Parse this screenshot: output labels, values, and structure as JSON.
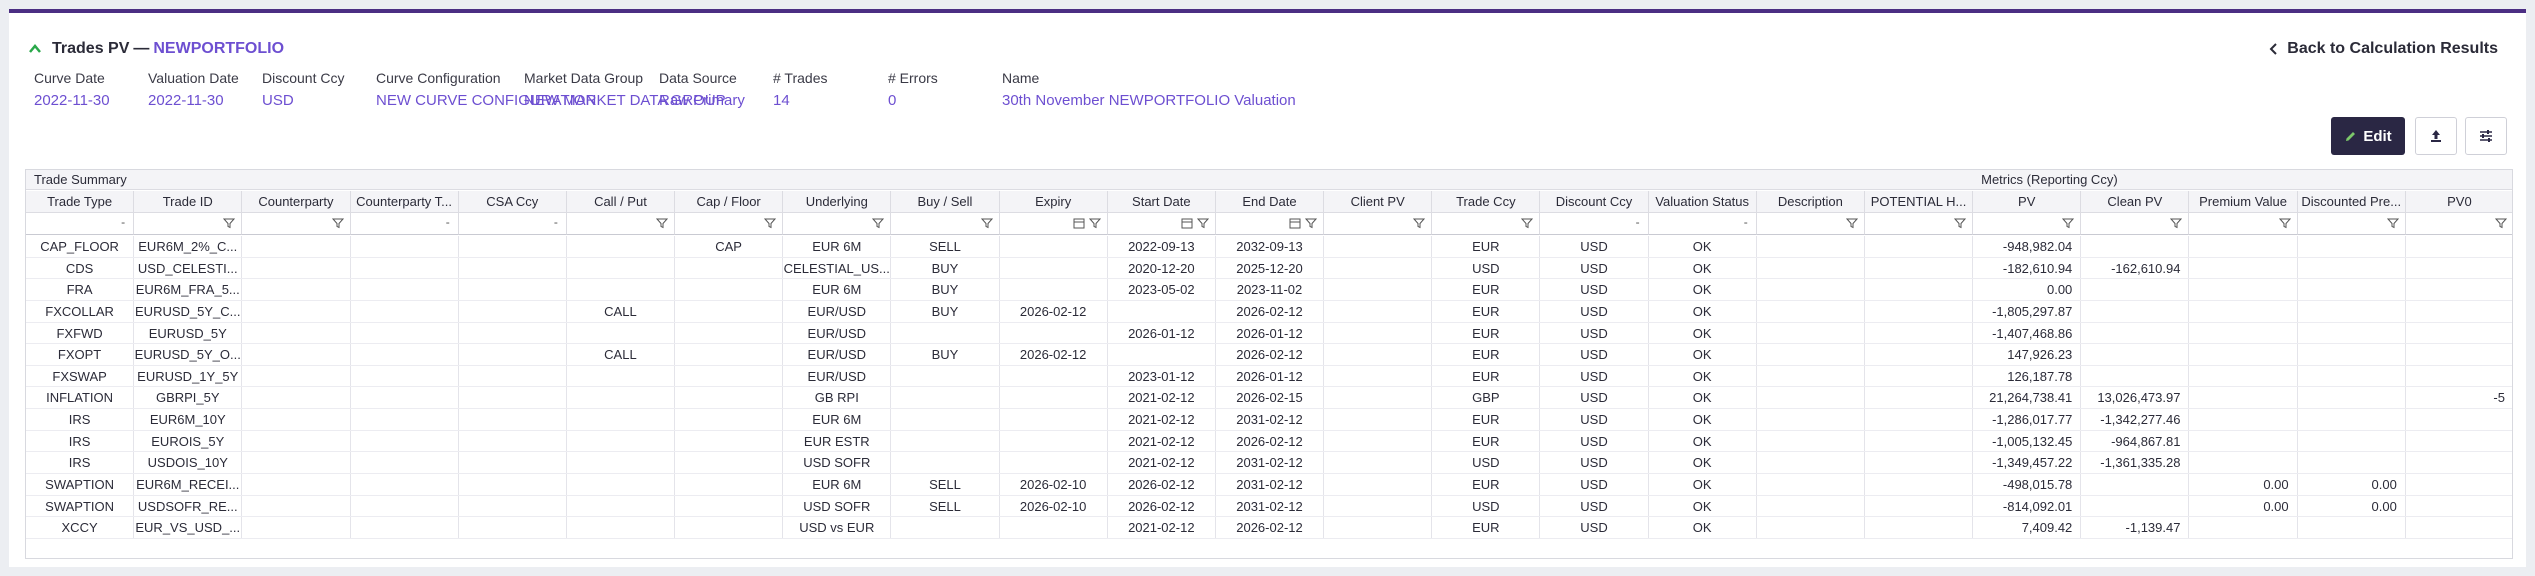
{
  "header": {
    "title": "Trades PV",
    "dash": "—",
    "portfolio": "NEWPORTFOLIO",
    "back_label": "Back to Calculation Results"
  },
  "meta": [
    {
      "label": "Curve Date",
      "value": "2022-11-30"
    },
    {
      "label": "Valuation Date",
      "value": "2022-11-30"
    },
    {
      "label": "Discount Ccy",
      "value": "USD"
    },
    {
      "label": "Curve Configuration",
      "value": "NEW CURVE CONFIGURATION"
    },
    {
      "label": "Market Data Group",
      "value": "NEW MARKET DATA GROUP"
    },
    {
      "label": "Data Source",
      "value": "Raw Primary"
    },
    {
      "label": "# Trades",
      "value": "14"
    },
    {
      "label": "# Errors",
      "value": "0"
    },
    {
      "label": "Name",
      "value": "30th November NEWPORTFOLIO Valuation"
    }
  ],
  "toolbar": {
    "edit_label": "Edit",
    "accent": "#2a2744"
  },
  "grid": {
    "group_trade_summary": "Trade Summary",
    "group_metrics": "Metrics (Reporting Ccy)",
    "columns": [
      "Trade Type",
      "Trade ID",
      "Counterparty",
      "Counterparty T...",
      "CSA Ccy",
      "Call / Put",
      "Cap / Floor",
      "Underlying",
      "Buy / Sell",
      "Expiry",
      "Start Date",
      "End Date",
      "Client PV",
      "Trade Ccy",
      "Discount Ccy",
      "Valuation Status",
      "Description",
      "POTENTIAL H...",
      "PV",
      "Clean PV",
      "Premium Value",
      "Discounted Pre...",
      "PV0"
    ],
    "rows": [
      [
        "CAP_FLOOR",
        "EUR6M_2%_C...",
        "",
        "",
        "",
        "",
        "CAP",
        "EUR 6M",
        "SELL",
        "",
        "2022-09-13",
        "2032-09-13",
        "",
        "EUR",
        "USD",
        "OK",
        "",
        "",
        "-948,982.04",
        "",
        "",
        "",
        ""
      ],
      [
        "CDS",
        "USD_CELESTI...",
        "",
        "",
        "",
        "",
        "",
        "CELESTIAL_US...",
        "BUY",
        "",
        "2020-12-20",
        "2025-12-20",
        "",
        "USD",
        "USD",
        "OK",
        "",
        "",
        "-182,610.94",
        "-162,610.94",
        "",
        "",
        ""
      ],
      [
        "FRA",
        "EUR6M_FRA_5...",
        "",
        "",
        "",
        "",
        "",
        "EUR 6M",
        "BUY",
        "",
        "2023-05-02",
        "2023-11-02",
        "",
        "EUR",
        "USD",
        "OK",
        "",
        "",
        "0.00",
        "",
        "",
        "",
        ""
      ],
      [
        "FXCOLLAR",
        "EURUSD_5Y_C...",
        "",
        "",
        "",
        "CALL",
        "",
        "EUR/USD",
        "BUY",
        "2026-02-12",
        "",
        "2026-02-12",
        "",
        "EUR",
        "USD",
        "OK",
        "",
        "",
        "-1,805,297.87",
        "",
        "",
        "",
        ""
      ],
      [
        "FXFWD",
        "EURUSD_5Y",
        "",
        "",
        "",
        "",
        "",
        "EUR/USD",
        "",
        "",
        "2026-01-12",
        "2026-01-12",
        "",
        "EUR",
        "USD",
        "OK",
        "",
        "",
        "-1,407,468.86",
        "",
        "",
        "",
        ""
      ],
      [
        "FXOPT",
        "EURUSD_5Y_O...",
        "",
        "",
        "",
        "CALL",
        "",
        "EUR/USD",
        "BUY",
        "2026-02-12",
        "",
        "2026-02-12",
        "",
        "EUR",
        "USD",
        "OK",
        "",
        "",
        "147,926.23",
        "",
        "",
        "",
        ""
      ],
      [
        "FXSWAP",
        "EURUSD_1Y_5Y",
        "",
        "",
        "",
        "",
        "",
        "EUR/USD",
        "",
        "",
        "2023-01-12",
        "2026-01-12",
        "",
        "EUR",
        "USD",
        "OK",
        "",
        "",
        "126,187.78",
        "",
        "",
        "",
        ""
      ],
      [
        "INFLATION",
        "GBRPI_5Y",
        "",
        "",
        "",
        "",
        "",
        "GB RPI",
        "",
        "",
        "2021-02-12",
        "2026-02-15",
        "",
        "GBP",
        "USD",
        "OK",
        "",
        "",
        "21,264,738.41",
        "13,026,473.97",
        "",
        "",
        "-5"
      ],
      [
        "IRS",
        "EUR6M_10Y",
        "",
        "",
        "",
        "",
        "",
        "EUR 6M",
        "",
        "",
        "2021-02-12",
        "2031-02-12",
        "",
        "EUR",
        "USD",
        "OK",
        "",
        "",
        "-1,286,017.77",
        "-1,342,277.46",
        "",
        "",
        ""
      ],
      [
        "IRS",
        "EUROIS_5Y",
        "",
        "",
        "",
        "",
        "",
        "EUR ESTR",
        "",
        "",
        "2021-02-12",
        "2026-02-12",
        "",
        "EUR",
        "USD",
        "OK",
        "",
        "",
        "-1,005,132.45",
        "-964,867.81",
        "",
        "",
        ""
      ],
      [
        "IRS",
        "USDOIS_10Y",
        "",
        "",
        "",
        "",
        "",
        "USD SOFR",
        "",
        "",
        "2021-02-12",
        "2031-02-12",
        "",
        "USD",
        "USD",
        "OK",
        "",
        "",
        "-1,349,457.22",
        "-1,361,335.28",
        "",
        "",
        ""
      ],
      [
        "SWAPTION",
        "EUR6M_RECEI...",
        "",
        "",
        "",
        "",
        "",
        "EUR 6M",
        "SELL",
        "2026-02-10",
        "2026-02-12",
        "2031-02-12",
        "",
        "EUR",
        "USD",
        "OK",
        "",
        "",
        "-498,015.78",
        "",
        "0.00",
        "0.00",
        ""
      ],
      [
        "SWAPTION",
        "USDSOFR_RE...",
        "",
        "",
        "",
        "",
        "",
        "USD SOFR",
        "SELL",
        "2026-02-10",
        "2026-02-12",
        "2031-02-12",
        "",
        "USD",
        "USD",
        "OK",
        "",
        "",
        "-814,092.01",
        "",
        "0.00",
        "0.00",
        ""
      ],
      [
        "XCCY",
        "EUR_VS_USD_...",
        "",
        "",
        "",
        "",
        "",
        "USD vs EUR",
        "",
        "",
        "2021-02-12",
        "2026-02-12",
        "",
        "EUR",
        "USD",
        "OK",
        "",
        "",
        "7,409.42",
        "-1,139.47",
        "",
        "",
        ""
      ]
    ]
  }
}
